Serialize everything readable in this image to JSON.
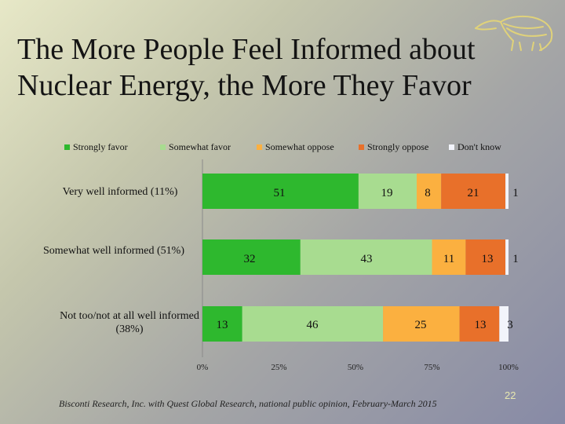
{
  "title_line1": "The More People Feel Informed about",
  "title_line2": "Nuclear Energy, the More They Favor",
  "source": "Bisconti Research, Inc. with Quest Global Research, national public opinion, February-March 2015",
  "page_number": "22",
  "chart_data": {
    "type": "bar",
    "orientation": "horizontal",
    "stacked": "percent",
    "categories": [
      "Very well informed (11%)",
      "Somewhat well informed (51%)",
      "Not too/not at all well informed (38%)"
    ],
    "series": [
      {
        "name": "Strongly favor",
        "color": "#2eb82e",
        "values": [
          51,
          32,
          13
        ]
      },
      {
        "name": "Somewhat favor",
        "color": "#a8dc90",
        "values": [
          19,
          43,
          46
        ]
      },
      {
        "name": "Somewhat oppose",
        "color": "#fbb040",
        "values": [
          8,
          11,
          25
        ]
      },
      {
        "name": "Strongly oppose",
        "color": "#e8702a",
        "values": [
          21,
          13,
          13
        ]
      },
      {
        "name": "Don't know",
        "color": "#f2f4fb",
        "values": [
          1,
          1,
          3
        ]
      }
    ],
    "xlim": [
      0,
      100
    ],
    "x_ticks": [
      "0%",
      "25%",
      "50%",
      "75%",
      "100%"
    ],
    "legend_position": "top"
  }
}
